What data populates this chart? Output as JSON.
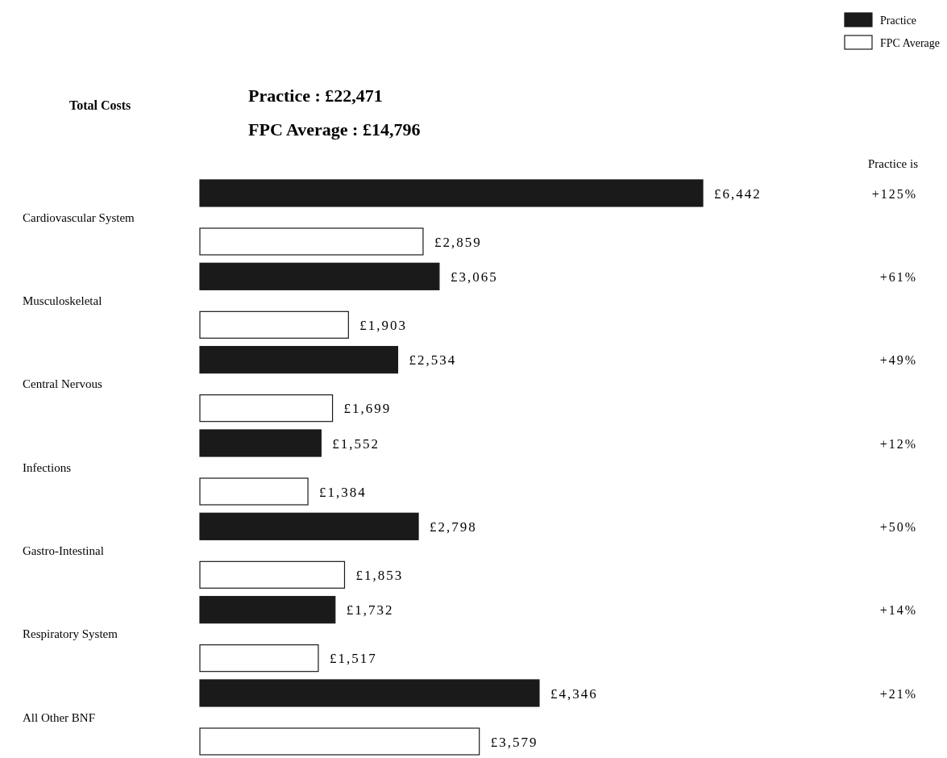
{
  "chart_data": {
    "type": "bar",
    "orientation": "horizontal",
    "categories": [
      "Cardiovascular System",
      "Musculoskeletal",
      "Central Nervous",
      "Infections",
      "Gastro-Intestinal",
      "Respiratory System",
      "All Other BNF"
    ],
    "series": [
      {
        "name": "Practice",
        "color": "#1a1a1a",
        "values": [
          6442,
          3065,
          2534,
          1552,
          2798,
          1732,
          4346
        ],
        "value_labels": [
          "£6,442",
          "£3,065",
          "£2,534",
          "£1,552",
          "£2,798",
          "£1,732",
          "£4,346"
        ]
      },
      {
        "name": "FPC Average",
        "color": "#ffffff",
        "values": [
          2859,
          1903,
          1699,
          1384,
          1853,
          1517,
          3579
        ],
        "value_labels": [
          "£2,859",
          "£1,903",
          "£1,699",
          "£1,384",
          "£1,853",
          "£1,517",
          "£3,579"
        ]
      }
    ],
    "legend": "top right",
    "annotations": [
      "Total Costs",
      "Practice  :  £22,471",
      "FPC Average  :  £14,796",
      "Practice is",
      "+125%",
      "+61%",
      "+49%",
      "+12%",
      "+50%",
      "+14%",
      "+21%"
    ]
  }
}
